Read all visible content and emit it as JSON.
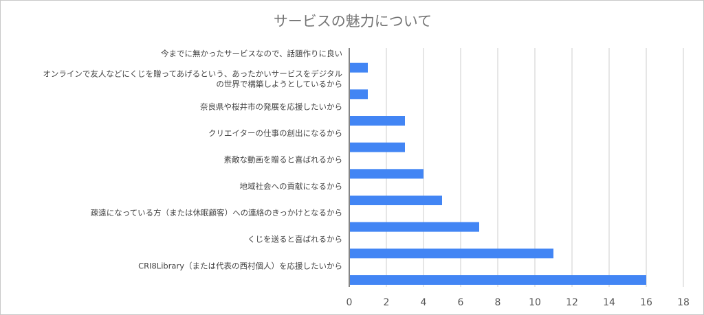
{
  "chart_data": {
    "type": "bar",
    "orientation": "horizontal",
    "title": "サービスの魅力について",
    "categories": [
      [
        "今までに無かったサービスなので、話題作りに良い"
      ],
      [
        "オンラインで友人などにくじを贈ってあげるという、あったかいサービスをデジタル",
        "の世界で構築しようとしているから"
      ],
      [
        "奈良県や桜井市の発展を応援したいから"
      ],
      [
        "クリエイターの仕事の創出になるから"
      ],
      [
        "素敵な動画を贈ると喜ばれるから"
      ],
      [
        "地域社会への貢献になるから"
      ],
      [
        "疎遠になっている方（または休眠顧客）への連絡のきっかけとなるから"
      ],
      [
        "くじを送ると喜ばれるから"
      ],
      [
        "CRI8Library（または代表の西村個人）を応援したいから"
      ]
    ],
    "values": [
      1,
      1,
      3,
      3,
      4,
      5,
      7,
      11,
      16
    ],
    "xlim": [
      0,
      18
    ],
    "xticks": [
      "0",
      "2",
      "4",
      "6",
      "8",
      "10",
      "12",
      "14",
      "16",
      "18"
    ],
    "grid": true,
    "bar_color": "#4285f4",
    "grid_color": "#cccccc",
    "axis_color": "#333333"
  }
}
